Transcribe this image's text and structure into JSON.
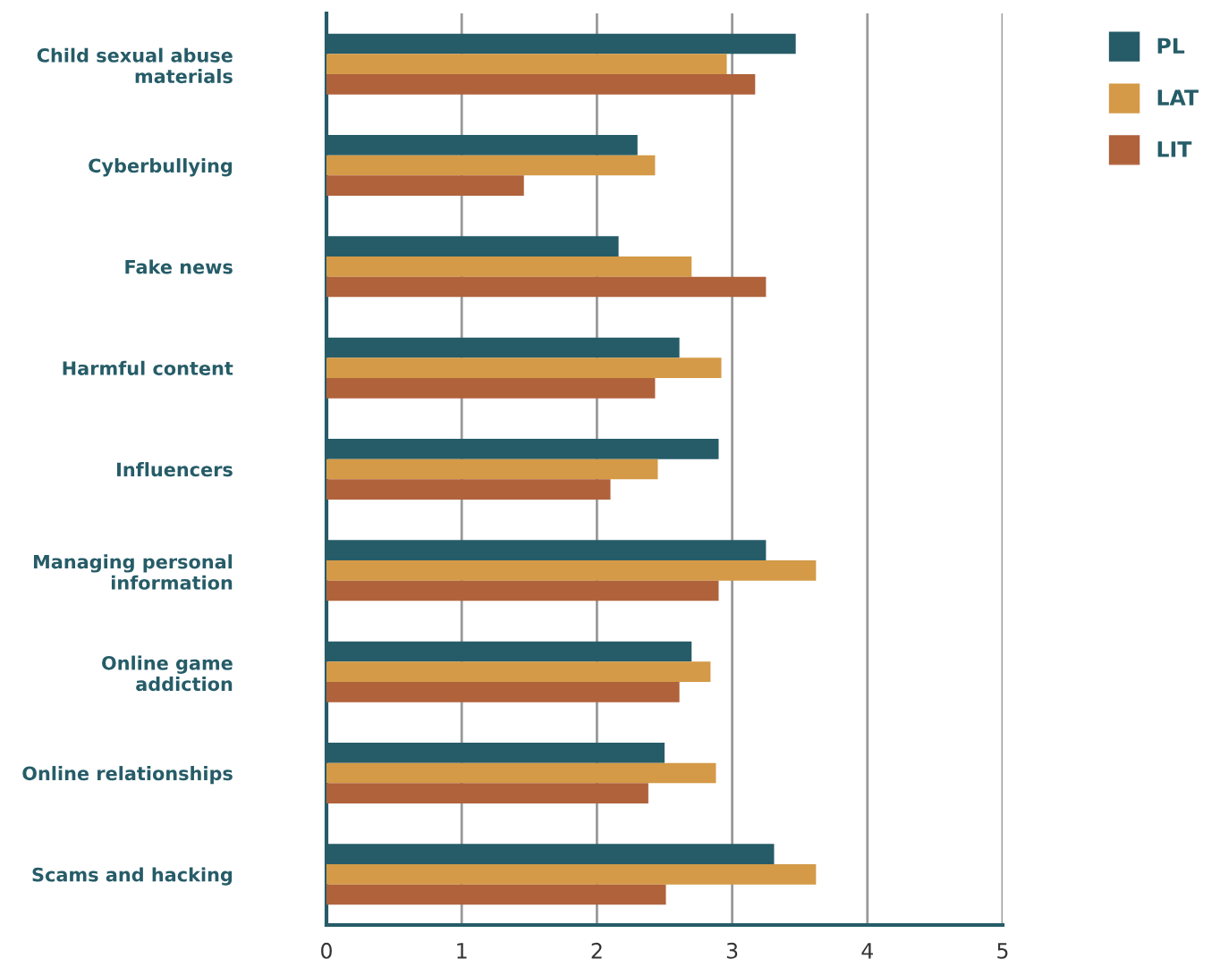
{
  "chart_data": {
    "type": "bar",
    "orientation": "horizontal",
    "categories": [
      "Child sexual abuse\nmaterials",
      "Cyberbullying",
      "Fake news",
      "Harmful content",
      "Influencers",
      "Managing personal\ninformation",
      "Online game\naddiction",
      "Online relationships",
      "Scams and hacking"
    ],
    "series": [
      {
        "name": "PL",
        "color": "#265c68",
        "values": [
          3.47,
          2.3,
          2.16,
          2.61,
          2.9,
          3.25,
          2.7,
          2.5,
          3.31
        ]
      },
      {
        "name": "LAT",
        "color": "#d49a47",
        "values": [
          2.96,
          2.43,
          2.7,
          2.92,
          2.45,
          3.62,
          2.84,
          2.88,
          3.62
        ]
      },
      {
        "name": "LIT",
        "color": "#b0623b",
        "values": [
          3.17,
          1.46,
          3.25,
          2.43,
          2.1,
          2.9,
          2.61,
          2.38,
          2.51
        ]
      }
    ],
    "xlim": [
      0,
      5
    ],
    "xticks": [
      0,
      1,
      2,
      3,
      4,
      5
    ],
    "grid": "x",
    "legend": "top right"
  }
}
